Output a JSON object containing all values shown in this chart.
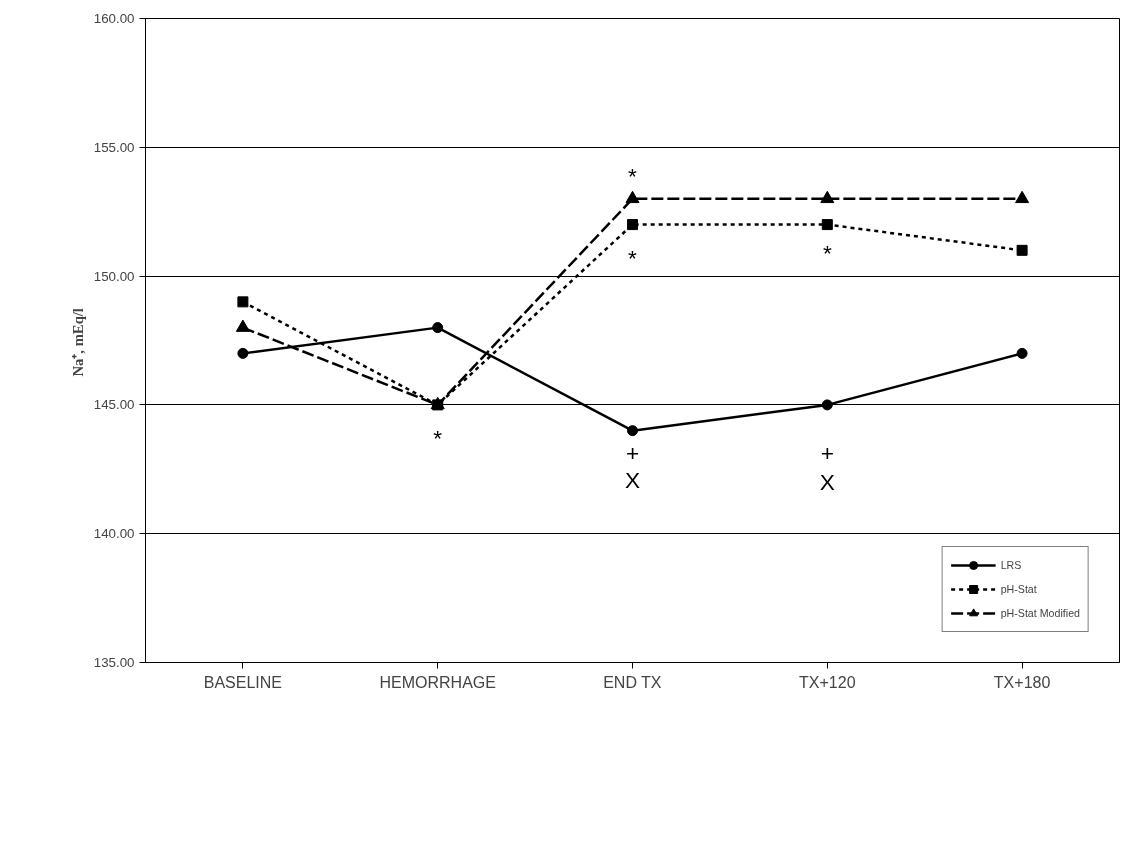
{
  "chart_data": {
    "type": "line",
    "ylabel": "Na⁺,  mEq/l",
    "categories": [
      "BASELINE",
      "HEMORRHAGE",
      "END TX",
      "TX+120",
      "TX+180"
    ],
    "series": [
      {
        "name": "LRS",
        "color": "#000000",
        "values": [
          147,
          148,
          144,
          145,
          147
        ],
        "marker": "circle",
        "line_style": "solid"
      },
      {
        "name": "pH-Stat",
        "color": "#000000",
        "values": [
          149,
          145,
          152,
          152,
          151
        ],
        "marker": "square",
        "line_style": "dotted"
      },
      {
        "name": "pH-Stat Modified",
        "color": "#000000",
        "values": [
          148,
          145,
          153,
          153,
          153
        ],
        "marker": "triangle",
        "line_style": "dashed"
      }
    ],
    "ylim": [
      135,
      160
    ],
    "yticks": [
      {
        "value": 135,
        "label": "135.00"
      },
      {
        "value": 140,
        "label": "140.00"
      },
      {
        "value": 145,
        "label": "145.00"
      },
      {
        "value": 150,
        "label": "150.00"
      },
      {
        "value": 155,
        "label": "155.00"
      },
      {
        "value": 160,
        "label": "160.00"
      }
    ],
    "grid": "y",
    "legend": "bottom right",
    "annotations": [
      "*",
      "*",
      "*",
      "*",
      "+",
      "X",
      "+",
      "X"
    ]
  }
}
